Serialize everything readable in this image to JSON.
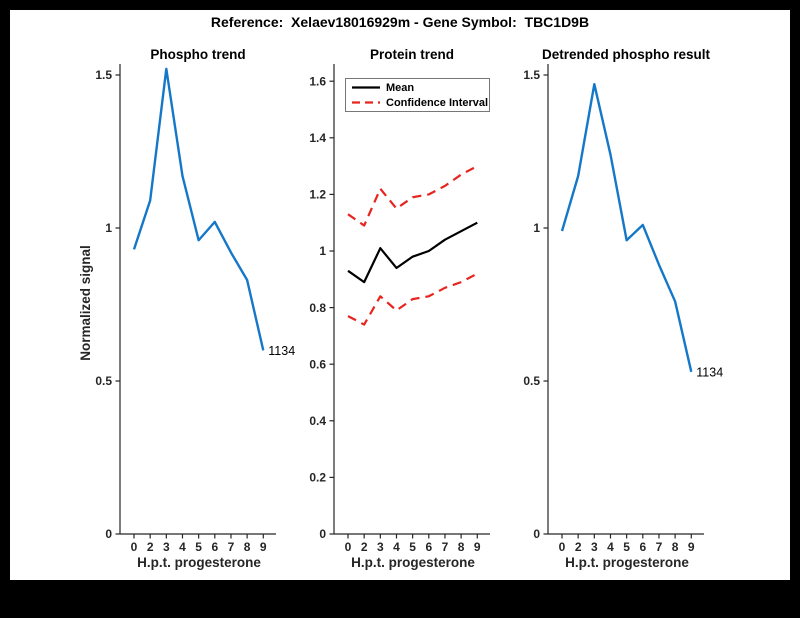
{
  "figure": {
    "title": "Reference:  Xelaev18016929m - Gene Symbol:  TBC1D9B",
    "background_color": "#000000",
    "canvas_color": "#ffffff",
    "axis_color": "#262626",
    "blue_color": "#1577c8",
    "red_color": "#e8241f",
    "black_color": "#000000"
  },
  "chart_data": [
    {
      "id": "phospho",
      "type": "line",
      "title": "Phospho trend",
      "xlabel": "H.p.t. progesterone",
      "ylabel": "Normalized signal",
      "x_tick_labels": [
        "0",
        "2",
        "3",
        "4",
        "5",
        "6",
        "7",
        "8",
        "9"
      ],
      "x": [
        0,
        2,
        3,
        4,
        5,
        6,
        7,
        8,
        9
      ],
      "series": [
        {
          "name": "Phospho",
          "color": "#1577c8",
          "style": "solid",
          "width": 2.4,
          "values": [
            0.93,
            1.09,
            1.52,
            1.17,
            0.96,
            1.02,
            0.92,
            0.83,
            0.6
          ]
        }
      ],
      "yticks": [
        0,
        0.5,
        1,
        1.5
      ],
      "ytick_labels": [
        "0",
        "0.5",
        "1",
        "1.5"
      ],
      "ylim": [
        0,
        1.54
      ],
      "grid": false,
      "annotation": "1134",
      "legend": null
    },
    {
      "id": "protein",
      "type": "line",
      "title": "Protein trend",
      "xlabel": "H.p.t. progesterone",
      "ylabel": "",
      "x_tick_labels": [
        "0",
        "2",
        "3",
        "4",
        "5",
        "6",
        "7",
        "8",
        "9"
      ],
      "x": [
        0,
        2,
        3,
        4,
        5,
        6,
        7,
        8,
        9
      ],
      "series": [
        {
          "name": "Mean",
          "color": "#000000",
          "style": "solid",
          "width": 2.2,
          "values": [
            0.93,
            0.89,
            1.01,
            0.94,
            0.98,
            1.0,
            1.04,
            1.07,
            1.1
          ]
        },
        {
          "name": "Confidence Interval Upper",
          "color": "#e8241f",
          "style": "dashed",
          "width": 2.2,
          "values": [
            1.13,
            1.09,
            1.22,
            1.15,
            1.19,
            1.2,
            1.23,
            1.27,
            1.3
          ]
        },
        {
          "name": "Confidence Interval Lower",
          "color": "#e8241f",
          "style": "dashed",
          "width": 2.2,
          "values": [
            0.77,
            0.74,
            0.84,
            0.79,
            0.83,
            0.84,
            0.87,
            0.89,
            0.92
          ]
        }
      ],
      "yticks": [
        0,
        0.2,
        0.4,
        0.6,
        0.8,
        1.0,
        1.2,
        1.4,
        1.6
      ],
      "ytick_labels": [
        "0",
        "0.2",
        "0.4",
        "0.6",
        "0.8",
        "1",
        "1.2",
        "1.4",
        "1.6"
      ],
      "ylim": [
        0,
        1.66
      ],
      "grid": false,
      "annotation": null,
      "legend": {
        "position": "top-left",
        "entries": [
          {
            "label": "Mean",
            "color": "#000000",
            "style": "solid"
          },
          {
            "label": "Confidence Interval",
            "color": "#e8241f",
            "style": "dashed"
          }
        ]
      }
    },
    {
      "id": "detrended",
      "type": "line",
      "title": "Detrended phospho result",
      "xlabel": "H.p.t. progesterone",
      "ylabel": "",
      "x_tick_labels": [
        "0",
        "2",
        "3",
        "4",
        "5",
        "6",
        "7",
        "8",
        "9"
      ],
      "x": [
        0,
        2,
        3,
        4,
        5,
        6,
        7,
        8,
        9
      ],
      "series": [
        {
          "name": "Detrended phospho",
          "color": "#1577c8",
          "style": "solid",
          "width": 2.4,
          "values": [
            0.99,
            1.17,
            1.47,
            1.24,
            0.96,
            1.01,
            0.88,
            0.76,
            0.53
          ]
        }
      ],
      "yticks": [
        0,
        0.5,
        1,
        1.5
      ],
      "ytick_labels": [
        "0",
        "0.5",
        "1",
        "1.5"
      ],
      "ylim": [
        0,
        1.54
      ],
      "grid": false,
      "annotation": "1134",
      "legend": null
    }
  ]
}
